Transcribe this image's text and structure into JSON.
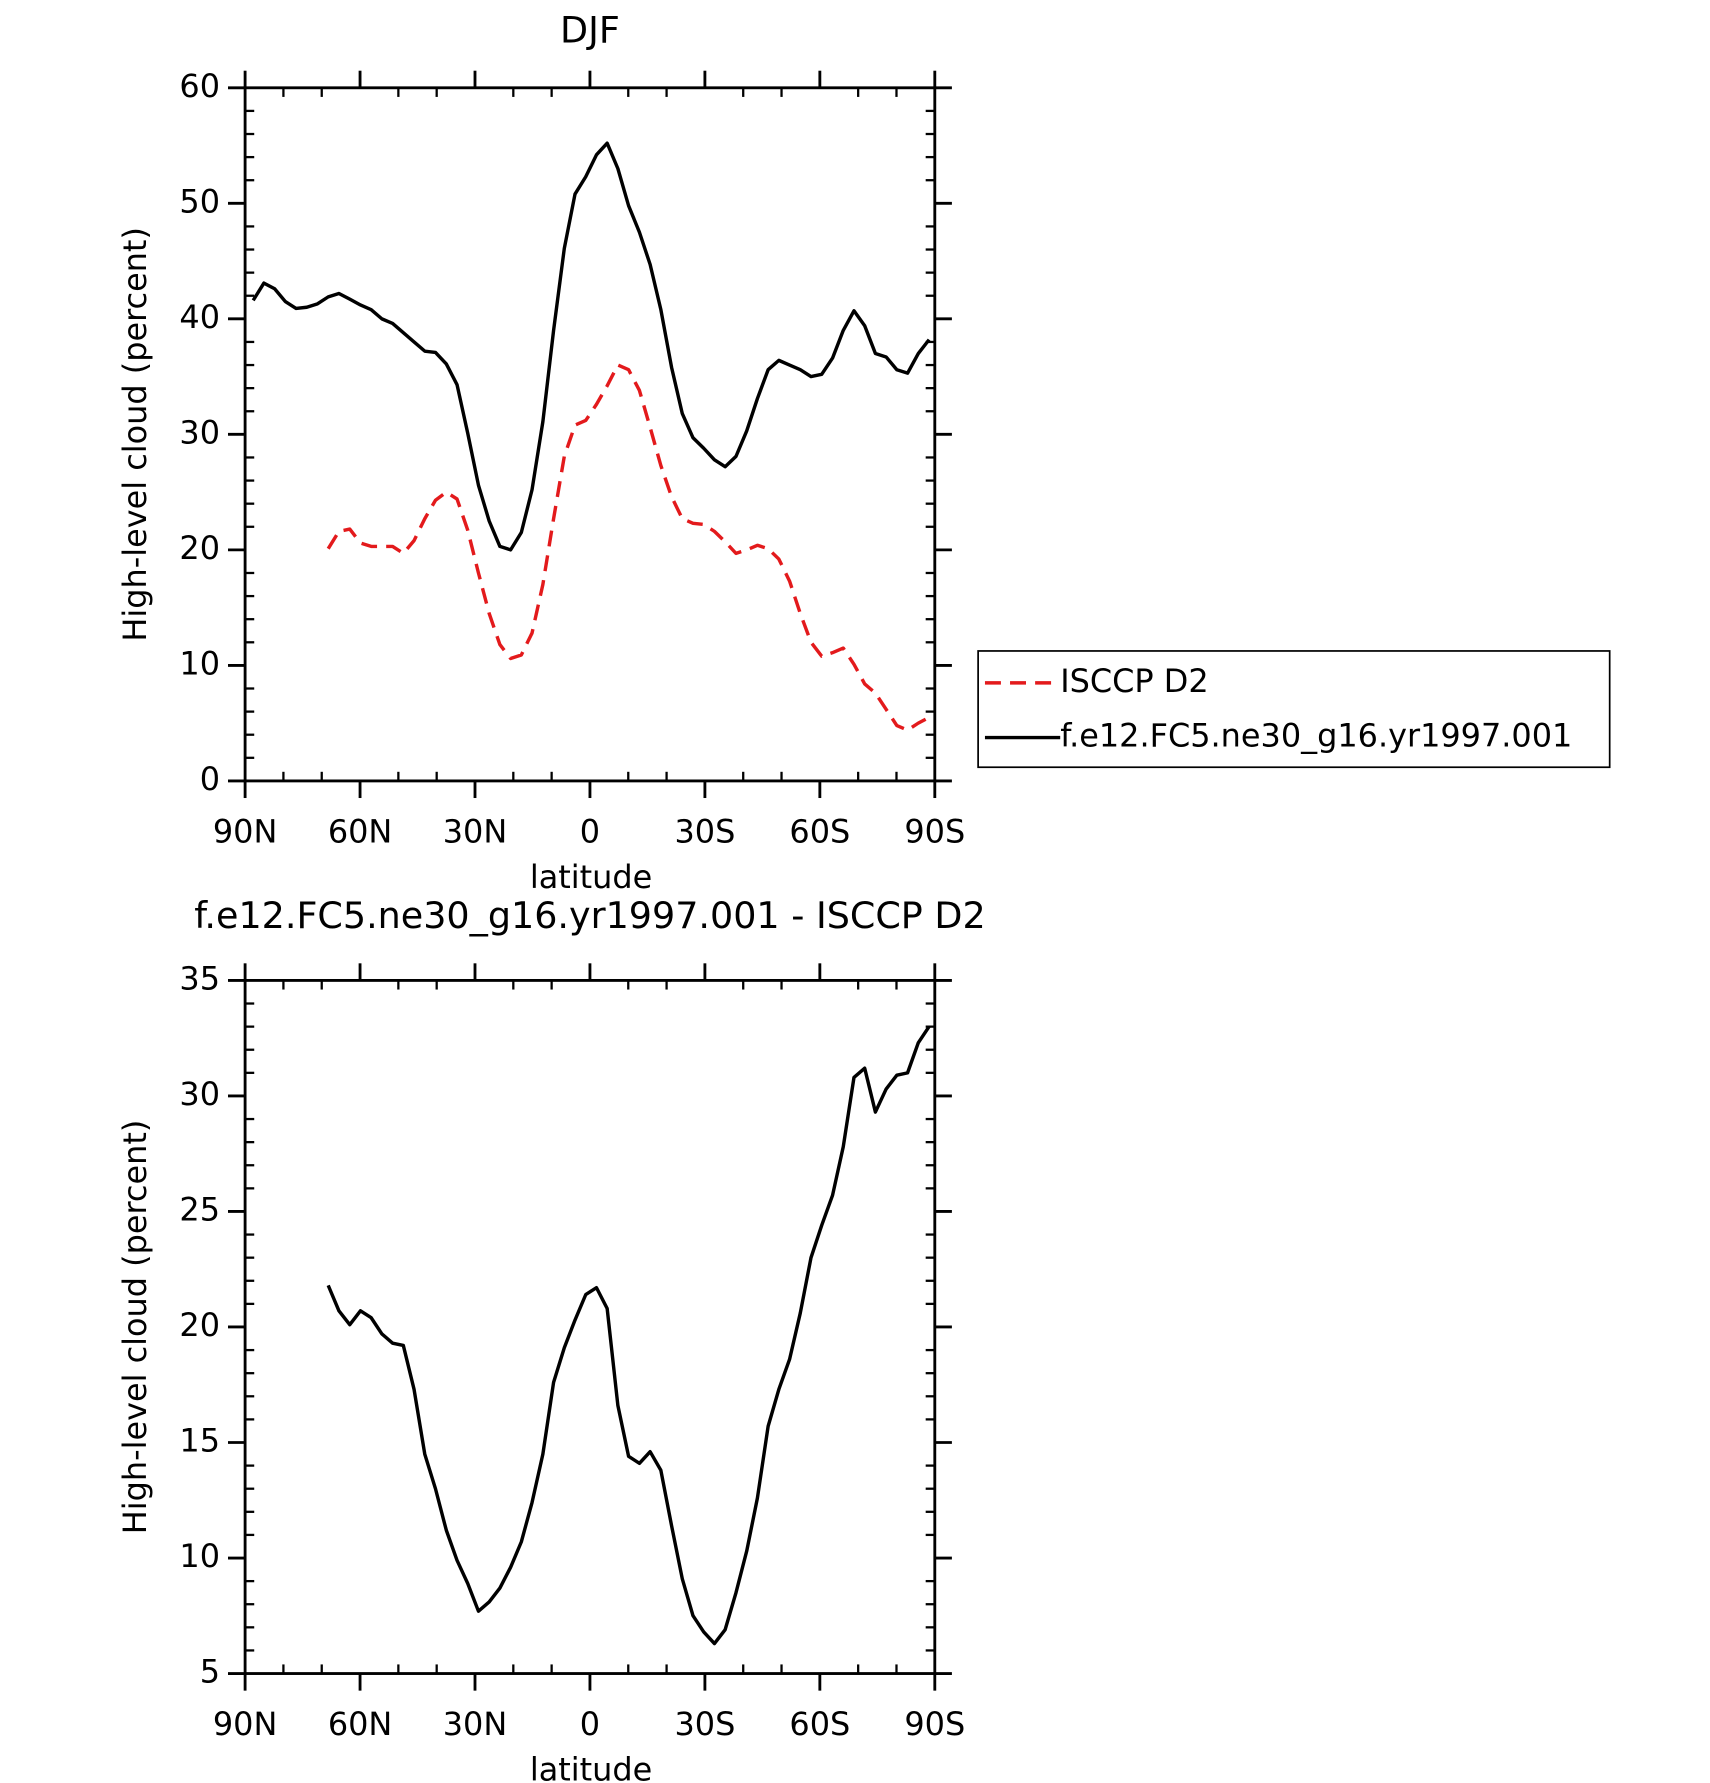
{
  "chart_data": [
    {
      "type": "line",
      "title": "DJF",
      "xlabel": "latitude",
      "ylabel": "High-level cloud (percent)",
      "x": [
        87.9,
        85.1,
        82.3,
        79.5,
        76.7,
        73.9,
        71.1,
        68.3,
        65.5,
        62.7,
        59.9,
        57.1,
        54.3,
        51.5,
        48.7,
        45.9,
        43.1,
        40.3,
        37.5,
        34.7,
        31.9,
        29.1,
        26.3,
        23.5,
        20.7,
        17.9,
        15.1,
        12.3,
        9.5,
        6.7,
        3.9,
        1.1,
        -1.7,
        -4.5,
        -7.3,
        -10.1,
        -12.9,
        -15.7,
        -18.5,
        -21.3,
        -24.1,
        -26.9,
        -29.7,
        -32.5,
        -35.3,
        -38.1,
        -40.9,
        -43.7,
        -46.5,
        -49.3,
        -52.1,
        -54.9,
        -57.7,
        -60.5,
        -63.3,
        -66.1,
        -68.9,
        -71.7,
        -74.5,
        -77.3,
        -80.1,
        -82.9,
        -85.7,
        -88.5
      ],
      "series": [
        {
          "name": "ISCCP D2",
          "color": "#e31a1c",
          "linestyle": "dashed",
          "values": [
            null,
            null,
            null,
            null,
            null,
            null,
            null,
            20.1,
            21.6,
            21.8,
            20.6,
            20.3,
            20.3,
            20.3,
            19.7,
            20.8,
            22.7,
            24.3,
            25.0,
            24.4,
            21.7,
            18.0,
            14.5,
            11.8,
            10.6,
            10.9,
            12.8,
            17.0,
            22.7,
            28.1,
            30.8,
            31.2,
            32.6,
            34.2,
            36.0,
            35.6,
            33.8,
            30.6,
            27.3,
            24.6,
            22.7,
            22.3,
            22.2,
            21.6,
            20.7,
            19.7,
            20.0,
            20.4,
            20.1,
            19.2,
            17.3,
            14.5,
            12.0,
            10.8,
            11.1,
            11.5,
            10.1,
            8.4,
            7.6,
            6.2,
            4.8,
            4.4,
            5.0,
            5.5
          ]
        },
        {
          "name": "f.e12.FC5.ne30_g16.yr1997.001",
          "color": "#000000",
          "linestyle": "solid",
          "values": [
            41.6,
            43.1,
            42.6,
            41.5,
            40.9,
            41.0,
            41.3,
            41.9,
            42.2,
            41.7,
            41.2,
            40.8,
            40.0,
            39.6,
            38.8,
            38.0,
            37.2,
            37.1,
            36.1,
            34.3,
            30.1,
            25.6,
            22.5,
            20.3,
            20.0,
            21.5,
            25.2,
            31.1,
            39.0,
            46.1,
            50.8,
            52.3,
            54.2,
            55.2,
            53.0,
            49.8,
            47.5,
            44.7,
            40.8,
            35.8,
            31.8,
            29.7,
            28.8,
            27.8,
            27.2,
            28.1,
            30.3,
            33.1,
            35.6,
            36.4,
            36.0,
            35.6,
            35.0,
            35.2,
            36.6,
            39.0,
            40.7,
            39.4,
            37.0,
            36.7,
            35.6,
            35.3,
            37.0,
            38.2
          ]
        }
      ],
      "xlim": [
        90,
        -90
      ],
      "xticks": [
        {
          "value": 90,
          "label": "90N"
        },
        {
          "value": 60,
          "label": "60N"
        },
        {
          "value": 30,
          "label": "30N"
        },
        0,
        {
          "value": -30,
          "label": "30S"
        },
        {
          "value": -60,
          "label": "60S"
        },
        {
          "value": -90,
          "label": "90S"
        }
      ],
      "ylim": [
        0,
        60
      ],
      "yticks": [
        0,
        10,
        20,
        30,
        40,
        50,
        60
      ],
      "legend": "right"
    },
    {
      "type": "line",
      "title": "f.e12.FC5.ne30_g16.yr1997.001 - ISCCP D2",
      "xlabel": "latitude",
      "ylabel": "High-level cloud (percent)",
      "x": [
        87.9,
        85.1,
        82.3,
        79.5,
        76.7,
        73.9,
        71.1,
        68.3,
        65.5,
        62.7,
        59.9,
        57.1,
        54.3,
        51.5,
        48.7,
        45.9,
        43.1,
        40.3,
        37.5,
        34.7,
        31.9,
        29.1,
        26.3,
        23.5,
        20.7,
        17.9,
        15.1,
        12.3,
        9.5,
        6.7,
        3.9,
        1.1,
        -1.7,
        -4.5,
        -7.3,
        -10.1,
        -12.9,
        -15.7,
        -18.5,
        -21.3,
        -24.1,
        -26.9,
        -29.7,
        -32.5,
        -35.3,
        -38.1,
        -40.9,
        -43.7,
        -46.5,
        -49.3,
        -52.1,
        -54.9,
        -57.7,
        -60.5,
        -63.3,
        -66.1,
        -68.9,
        -71.7,
        -74.5,
        -77.3,
        -80.1,
        -82.9,
        -85.7,
        -88.5
      ],
      "series": [
        {
          "color": "#000000",
          "linestyle": "solid",
          "values": [
            null,
            null,
            null,
            null,
            null,
            null,
            null,
            21.8,
            20.7,
            20.1,
            20.7,
            20.4,
            19.7,
            19.3,
            19.2,
            17.3,
            14.5,
            13.0,
            11.2,
            9.9,
            8.9,
            7.7,
            8.1,
            8.7,
            9.6,
            10.7,
            12.4,
            14.5,
            17.6,
            19.1,
            20.3,
            21.4,
            21.7,
            20.8,
            16.6,
            14.4,
            14.1,
            14.6,
            13.8,
            11.4,
            9.1,
            7.5,
            6.8,
            6.3,
            6.9,
            8.5,
            10.3,
            12.6,
            15.7,
            17.3,
            18.6,
            20.6,
            23.0,
            24.4,
            25.7,
            27.8,
            30.8,
            31.2,
            29.3,
            30.3,
            30.9,
            31.0,
            32.3,
            33.0
          ]
        }
      ],
      "xlim": [
        90,
        -90
      ],
      "xticks": [
        {
          "value": 90,
          "label": "90N"
        },
        {
          "value": 60,
          "label": "60N"
        },
        {
          "value": 30,
          "label": "30N"
        },
        0,
        {
          "value": -30,
          "label": "30S"
        },
        {
          "value": -60,
          "label": "60S"
        },
        {
          "value": -90,
          "label": "90S"
        }
      ],
      "ylim": [
        5,
        35
      ],
      "yticks": [
        5,
        10,
        15,
        20,
        25,
        30,
        35
      ]
    }
  ]
}
